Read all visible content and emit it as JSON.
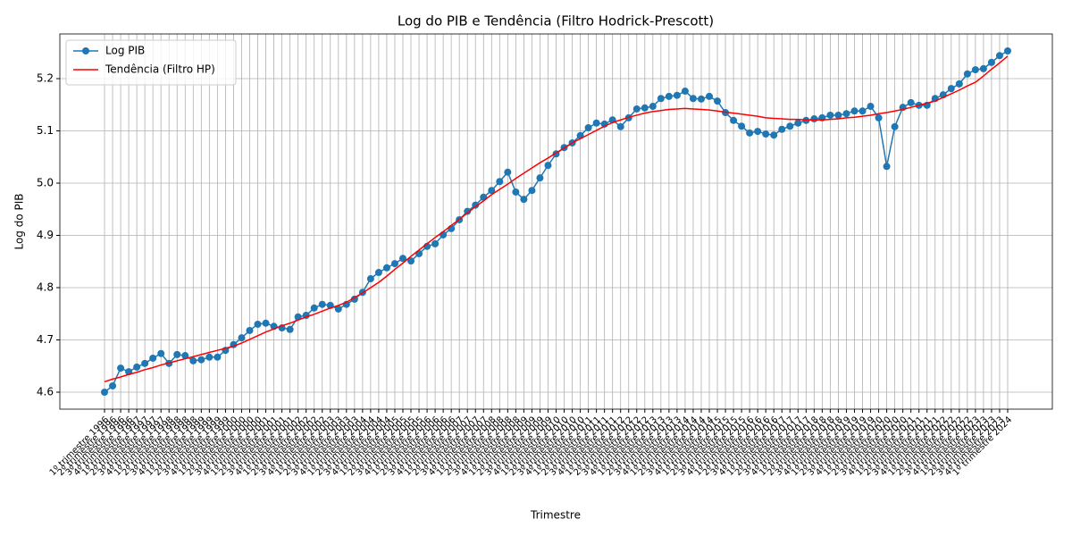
{
  "chart_data": {
    "type": "line",
    "title": "Log do PIB e Tendência (Filtro Hodrick-Prescott)",
    "x_label": "Trimestre",
    "y_label": "Log do PIB",
    "categories": [
      "1º trimestre 1996",
      "2º trimestre 1996",
      "3º trimestre 1996",
      "4º trimestre 1996",
      "1º trimestre 1997",
      "2º trimestre 1997",
      "3º trimestre 1997",
      "4º trimestre 1997",
      "1º trimestre 1998",
      "2º trimestre 1998",
      "3º trimestre 1998",
      "4º trimestre 1998",
      "1º trimestre 1999",
      "2º trimestre 1999",
      "3º trimestre 1999",
      "4º trimestre 1999",
      "1º trimestre 2000",
      "2º trimestre 2000",
      "3º trimestre 2000",
      "4º trimestre 2000",
      "1º trimestre 2001",
      "2º trimestre 2001",
      "3º trimestre 2001",
      "4º trimestre 2001",
      "1º trimestre 2002",
      "2º trimestre 2002",
      "3º trimestre 2002",
      "4º trimestre 2002",
      "1º trimestre 2003",
      "2º trimestre 2003",
      "3º trimestre 2003",
      "4º trimestre 2003",
      "1º trimestre 2004",
      "2º trimestre 2004",
      "3º trimestre 2004",
      "4º trimestre 2004",
      "1º trimestre 2005",
      "2º trimestre 2005",
      "3º trimestre 2005",
      "4º trimestre 2005",
      "1º trimestre 2006",
      "2º trimestre 2006",
      "3º trimestre 2006",
      "4º trimestre 2006",
      "1º trimestre 2007",
      "2º trimestre 2007",
      "3º trimestre 2007",
      "4º trimestre 2007",
      "1º trimestre 2008",
      "2º trimestre 2008",
      "3º trimestre 2008",
      "4º trimestre 2008",
      "1º trimestre 2009",
      "2º trimestre 2009",
      "3º trimestre 2009",
      "4º trimestre 2009",
      "1º trimestre 2010",
      "2º trimestre 2010",
      "3º trimestre 2010",
      "4º trimestre 2010",
      "1º trimestre 2011",
      "2º trimestre 2011",
      "3º trimestre 2011",
      "4º trimestre 2011",
      "1º trimestre 2012",
      "2º trimestre 2012",
      "3º trimestre 2012",
      "4º trimestre 2012",
      "1º trimestre 2013",
      "2º trimestre 2013",
      "3º trimestre 2013",
      "4º trimestre 2013",
      "1º trimestre 2014",
      "2º trimestre 2014",
      "3º trimestre 2014",
      "4º trimestre 2014",
      "1º trimestre 2015",
      "2º trimestre 2015",
      "3º trimestre 2015",
      "4º trimestre 2015",
      "1º trimestre 2016",
      "2º trimestre 2016",
      "3º trimestre 2016",
      "4º trimestre 2016",
      "1º trimestre 2017",
      "2º trimestre 2017",
      "3º trimestre 2017",
      "4º trimestre 2017",
      "1º trimestre 2018",
      "2º trimestre 2018",
      "3º trimestre 2018",
      "4º trimestre 2018",
      "1º trimestre 2019",
      "2º trimestre 2019",
      "3º trimestre 2019",
      "4º trimestre 2019",
      "1º trimestre 2020",
      "2º trimestre 2020",
      "3º trimestre 2020",
      "4º trimestre 2020",
      "1º trimestre 2021",
      "2º trimestre 2021",
      "3º trimestre 2021",
      "4º trimestre 2021",
      "1º trimestre 2022",
      "2º trimestre 2022",
      "3º trimestre 2022",
      "4º trimestre 2022",
      "1º trimestre 2023",
      "2º trimestre 2023",
      "3º trimestre 2023",
      "4º trimestre 2023",
      "1º trimestre 2024"
    ],
    "series": [
      {
        "name": "Log PIB",
        "color": "#1f77b4",
        "marker": true,
        "values": [
          4.6,
          4.612,
          4.646,
          4.639,
          4.648,
          4.655,
          4.665,
          4.674,
          4.655,
          4.672,
          4.67,
          4.66,
          4.662,
          4.667,
          4.667,
          4.68,
          4.691,
          4.704,
          4.718,
          4.73,
          4.732,
          4.726,
          4.723,
          4.72,
          4.744,
          4.747,
          4.761,
          4.768,
          4.766,
          4.759,
          4.768,
          4.778,
          4.791,
          4.817,
          4.829,
          4.838,
          4.846,
          4.856,
          4.851,
          4.865,
          4.879,
          4.884,
          4.901,
          4.913,
          4.93,
          4.946,
          4.958,
          4.973,
          4.986,
          5.003,
          5.021,
          4.983,
          4.969,
          4.986,
          5.01,
          5.034,
          5.056,
          5.068,
          5.077,
          5.091,
          5.106,
          5.115,
          5.113,
          5.121,
          5.108,
          5.125,
          5.142,
          5.144,
          5.147,
          5.162,
          5.166,
          5.168,
          5.176,
          5.162,
          5.161,
          5.166,
          5.157,
          5.135,
          5.12,
          5.109,
          5.096,
          5.099,
          5.094,
          5.092,
          5.103,
          5.109,
          5.115,
          5.12,
          5.123,
          5.125,
          5.13,
          5.13,
          5.133,
          5.138,
          5.138,
          5.147,
          5.125,
          5.032,
          5.108,
          5.145,
          5.154,
          5.149,
          5.149,
          5.162,
          5.169,
          5.181,
          5.19,
          5.209,
          5.217,
          5.219,
          5.231,
          5.244,
          5.253
        ]
      },
      {
        "name": "Tendência (Filtro HP)",
        "color": "#ff0000",
        "marker": false,
        "values": [
          4.62,
          4.625,
          4.629,
          4.634,
          4.638,
          4.643,
          4.647,
          4.652,
          4.656,
          4.66,
          4.664,
          4.668,
          4.672,
          4.676,
          4.68,
          4.684,
          4.688,
          4.694,
          4.701,
          4.708,
          4.715,
          4.721,
          4.727,
          4.732,
          4.738,
          4.744,
          4.749,
          4.755,
          4.761,
          4.766,
          4.772,
          4.781,
          4.79,
          4.8,
          4.81,
          4.822,
          4.835,
          4.847,
          4.86,
          4.872,
          4.884,
          4.896,
          4.907,
          4.919,
          4.931,
          4.943,
          4.955,
          4.966,
          4.978,
          4.988,
          4.998,
          5.009,
          5.019,
          5.029,
          5.039,
          5.048,
          5.058,
          5.067,
          5.077,
          5.085,
          5.093,
          5.101,
          5.109,
          5.116,
          5.121,
          5.126,
          5.13,
          5.134,
          5.137,
          5.139,
          5.141,
          5.142,
          5.143,
          5.142,
          5.141,
          5.14,
          5.138,
          5.136,
          5.134,
          5.132,
          5.13,
          5.128,
          5.125,
          5.124,
          5.123,
          5.122,
          5.122,
          5.121,
          5.121,
          5.121,
          5.122,
          5.123,
          5.125,
          5.126,
          5.128,
          5.13,
          5.133,
          5.135,
          5.138,
          5.141,
          5.145,
          5.149,
          5.153,
          5.157,
          5.164,
          5.171,
          5.178,
          5.186,
          5.193,
          5.205,
          5.218,
          5.23,
          5.243
        ]
      }
    ],
    "ylim": [
      4.5675,
      5.2855
    ],
    "yticks": [
      {
        "value": 4.6,
        "label": "4.6"
      },
      {
        "value": 4.7,
        "label": "4.7"
      },
      {
        "value": 4.8,
        "label": "4.8"
      },
      {
        "value": 4.9,
        "label": "4.9"
      },
      {
        "value": 5.0,
        "label": "5.0"
      },
      {
        "value": 5.1,
        "label": "5.1"
      },
      {
        "value": 5.2,
        "label": "5.2"
      }
    ],
    "grid": true,
    "legend": "upper left"
  }
}
